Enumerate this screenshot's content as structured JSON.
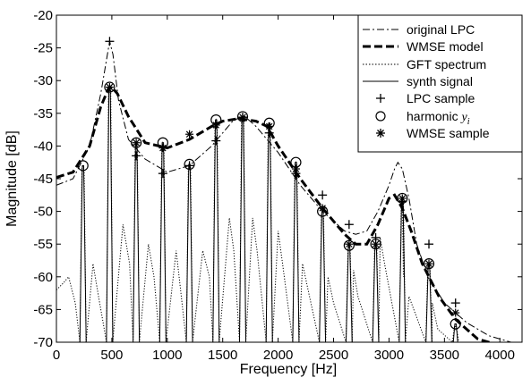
{
  "chart_data": {
    "type": "line",
    "xlabel": "Frequency [Hz]",
    "ylabel": "Magnitude [dB]",
    "xlim": [
      0,
      4200
    ],
    "ylim": [
      -70,
      -20
    ],
    "xticks": [
      0,
      500,
      1000,
      1500,
      2000,
      2500,
      3000,
      3500,
      4000
    ],
    "yticks": [
      -20,
      -25,
      -30,
      -35,
      -40,
      -45,
      -50,
      -55,
      -60,
      -65,
      -70
    ],
    "grid": false,
    "legend_position": "top-right",
    "legend": {
      "original_lpc": "original LPC",
      "wmse_model": "WMSE model",
      "gft_spectrum": "GFT spectrum",
      "synth_signal": "synth signal",
      "lpc_sample": "LPC sample",
      "harmonic_prefix": "harmonic ",
      "harmonic_symbol": "y",
      "harmonic_subscript": "i",
      "wmse_sample": "WMSE sample"
    },
    "series": [
      {
        "key": "original_lpc",
        "style": "dash-dot",
        "x": [
          0,
          150,
          300,
          400,
          450,
          480,
          510,
          560,
          650,
          800,
          1000,
          1200,
          1400,
          1600,
          1700,
          1800,
          2000,
          2200,
          2400,
          2600,
          2700,
          2800,
          2900,
          3000,
          3050,
          3080,
          3120,
          3180,
          3250,
          3350,
          3500,
          3700,
          3900,
          4100
        ],
        "y": [
          -46,
          -45,
          -40,
          -32,
          -27,
          -24,
          -26,
          -33,
          -39,
          -42,
          -44,
          -43,
          -40,
          -36,
          -35.5,
          -37,
          -41,
          -46,
          -50,
          -53,
          -53.5,
          -53,
          -50,
          -46,
          -43.5,
          -42.5,
          -43.5,
          -48,
          -55,
          -60,
          -64,
          -67,
          -69,
          -70
        ]
      },
      {
        "key": "wmse_model",
        "style": "dashed-bold",
        "x": [
          0,
          150,
          300,
          400,
          470,
          500,
          550,
          650,
          800,
          1000,
          1200,
          1400,
          1500,
          1650,
          1800,
          1900,
          2000,
          2200,
          2400,
          2600,
          2700,
          2800,
          2900,
          3000,
          3050,
          3120,
          3200,
          3300,
          3450,
          3600,
          3800,
          4000
        ],
        "y": [
          -44.8,
          -44,
          -40,
          -34,
          -31.2,
          -31,
          -32,
          -35.5,
          -39.5,
          -40.3,
          -39,
          -37,
          -36.2,
          -35.8,
          -36.2,
          -37,
          -40,
          -45,
          -49.5,
          -53.5,
          -55,
          -55,
          -52,
          -48,
          -47.5,
          -49.5,
          -53,
          -58,
          -63,
          -66.5,
          -69.5,
          -70.5
        ]
      }
    ],
    "gft_spectrum_style": "dotted",
    "gft_spectrum_floor": [
      [
        0,
        -62
      ],
      [
        60,
        -61
      ],
      [
        110,
        -60
      ],
      [
        170,
        -64
      ],
      [
        330,
        -58
      ],
      [
        380,
        -63
      ],
      [
        600,
        -52
      ],
      [
        660,
        -58
      ],
      [
        830,
        -55
      ],
      [
        880,
        -60
      ],
      [
        1080,
        -56
      ],
      [
        1120,
        -62
      ],
      [
        1320,
        -56
      ],
      [
        1380,
        -60
      ],
      [
        1560,
        -51
      ],
      [
        1600,
        -56
      ],
      [
        1770,
        -51
      ],
      [
        1810,
        -56
      ],
      [
        2000,
        -53
      ],
      [
        2040,
        -58
      ],
      [
        2220,
        -58
      ],
      [
        2270,
        -62
      ],
      [
        2450,
        -60
      ],
      [
        2500,
        -64
      ],
      [
        2680,
        -59
      ],
      [
        2720,
        -63
      ],
      [
        2920,
        -54
      ],
      [
        2960,
        -58
      ],
      [
        3130,
        -60
      ],
      [
        3180,
        -63
      ],
      [
        3390,
        -64
      ],
      [
        3440,
        -68
      ],
      [
        3600,
        -68
      ],
      [
        3680,
        -70
      ]
    ],
    "harmonics": {
      "x": [
        240,
        480,
        720,
        960,
        1200,
        1440,
        1680,
        1920,
        2160,
        2400,
        2640,
        2880,
        3120,
        3360,
        3600
      ],
      "y": [
        -43,
        -31,
        -39.5,
        -39.5,
        -42.8,
        -36,
        -35.5,
        -36.5,
        -42.5,
        -50,
        -55.2,
        -55,
        -48,
        -58,
        -67.2
      ]
    },
    "lpc_sample": {
      "x": [
        480,
        720,
        960,
        1200,
        1440,
        1680,
        1920,
        2160,
        2400,
        2640,
        2880,
        3120,
        3360,
        3600
      ],
      "y": [
        -24,
        -41.5,
        -44.2,
        -43,
        -39.2,
        -35.6,
        -38,
        -44.2,
        -47.5,
        -52,
        -54,
        -48.5,
        -55,
        -64
      ]
    },
    "wmse_sample": {
      "x": [
        480,
        720,
        960,
        1200,
        1440,
        1680,
        1920,
        2160,
        2400,
        2640,
        2880,
        3120,
        3360,
        3600
      ],
      "y": [
        -31,
        -39.5,
        -40.3,
        -38.2,
        -36.8,
        -35.6,
        -37,
        -43.5,
        -49.5,
        -55,
        -55,
        -48,
        -58,
        -65.5
      ]
    },
    "synth_signal_style": "solid"
  }
}
